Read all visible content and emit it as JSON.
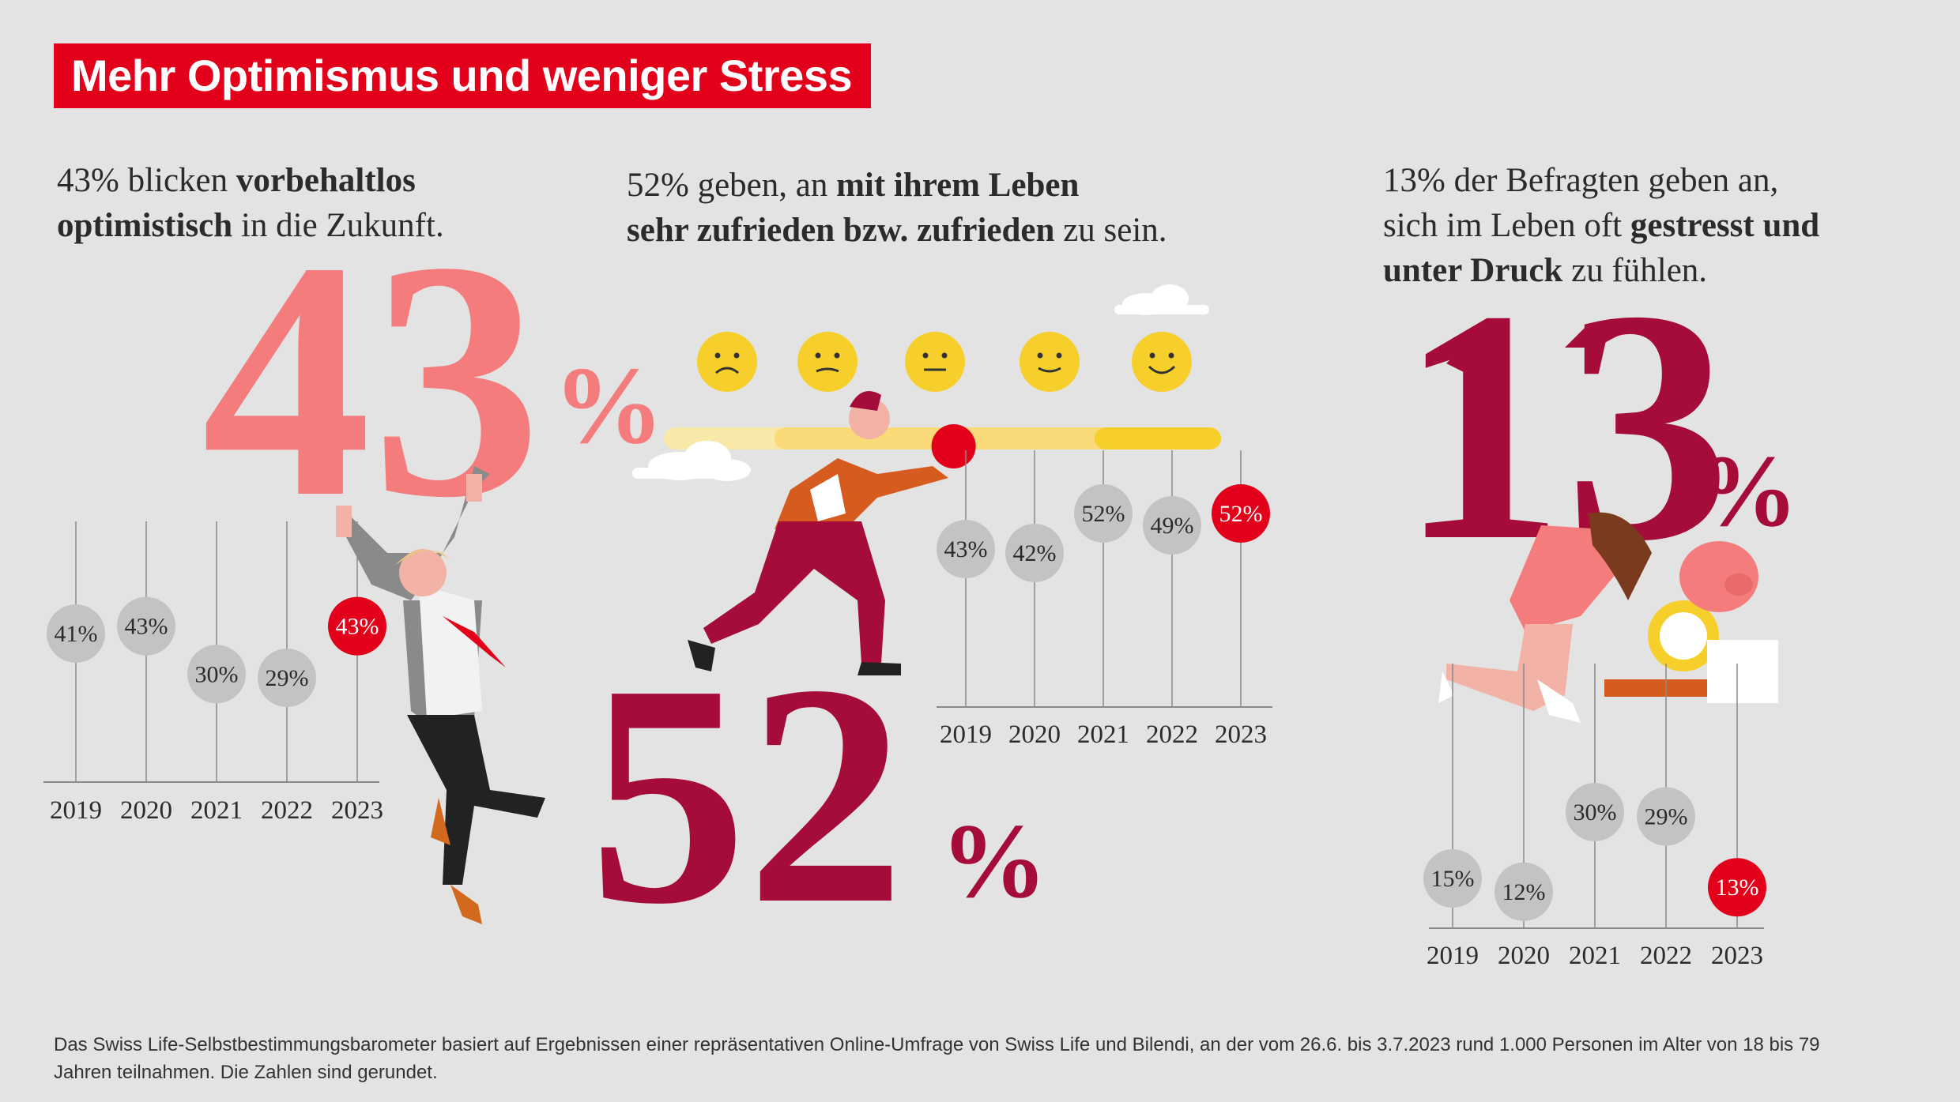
{
  "title": "Mehr Optimismus und weniger Stress",
  "colors": {
    "red": "#e2001a",
    "crimson": "#a50c3a",
    "salmon": "#f47c7c",
    "grey_bubble": "#c3c3c3",
    "highlight_bubble": "#e2001a",
    "background": "#e3e3e3"
  },
  "sections": [
    {
      "intro_plain_1": "43% blicken ",
      "intro_bold_1": "vorbehaltlos",
      "intro_bold_2": "optimistisch",
      "intro_plain_2": " in die Zukunft.",
      "big_number": "43",
      "big_percent": "%"
    },
    {
      "intro_plain_1": "52% geben, an ",
      "intro_bold_1": "mit ihrem Leben",
      "intro_bold_2": "sehr zufrieden bzw. zufrieden",
      "intro_plain_2": " zu sein.",
      "big_number": "52",
      "big_percent": "%"
    },
    {
      "intro_plain_1": "13% der Befragten geben an,",
      "intro_plain_2": "sich im Leben oft ",
      "intro_bold_1": "gestresst und",
      "intro_bold_2": "unter Druck",
      "intro_plain_3": "  zu fühlen.",
      "big_number": "13",
      "big_percent": "%"
    }
  ],
  "chart_data": [
    {
      "type": "scatter",
      "categories": [
        "2019",
        "2020",
        "2021",
        "2022",
        "2023"
      ],
      "values": [
        41,
        43,
        30,
        29,
        43
      ],
      "labels": [
        "41%",
        "43%",
        "30%",
        "29%",
        "43%"
      ],
      "highlight": "2023"
    },
    {
      "type": "scatter",
      "categories": [
        "2019",
        "2020",
        "2021",
        "2022",
        "2023"
      ],
      "values": [
        43,
        42,
        52,
        49,
        52
      ],
      "labels": [
        "43%",
        "42%",
        "52%",
        "49%",
        "52%"
      ],
      "highlight": "2023"
    },
    {
      "type": "scatter",
      "categories": [
        "2019",
        "2020",
        "2021",
        "2022",
        "2023"
      ],
      "values": [
        15,
        12,
        30,
        29,
        13
      ],
      "labels": [
        "15%",
        "12%",
        "30%",
        "29%",
        "13%"
      ],
      "highlight": "2023"
    }
  ],
  "satisfaction_scale": {
    "faces": [
      "very-sad-face-icon",
      "sad-face-icon",
      "neutral-face-icon",
      "content-face-icon",
      "happy-face-icon"
    ],
    "marker_position": 0.52
  },
  "footnote": "Das Swiss Life-Selbstbestimmungsbarometer basiert auf Ergebnissen einer repräsentativen Online-Umfrage von Swiss Life und Bilendi, an der vom 26.6. bis 3.7.2023 rund 1.000 Personen im Alter von 18 bis 79 Jahren teilnahmen. Die Zahlen sind gerundet."
}
